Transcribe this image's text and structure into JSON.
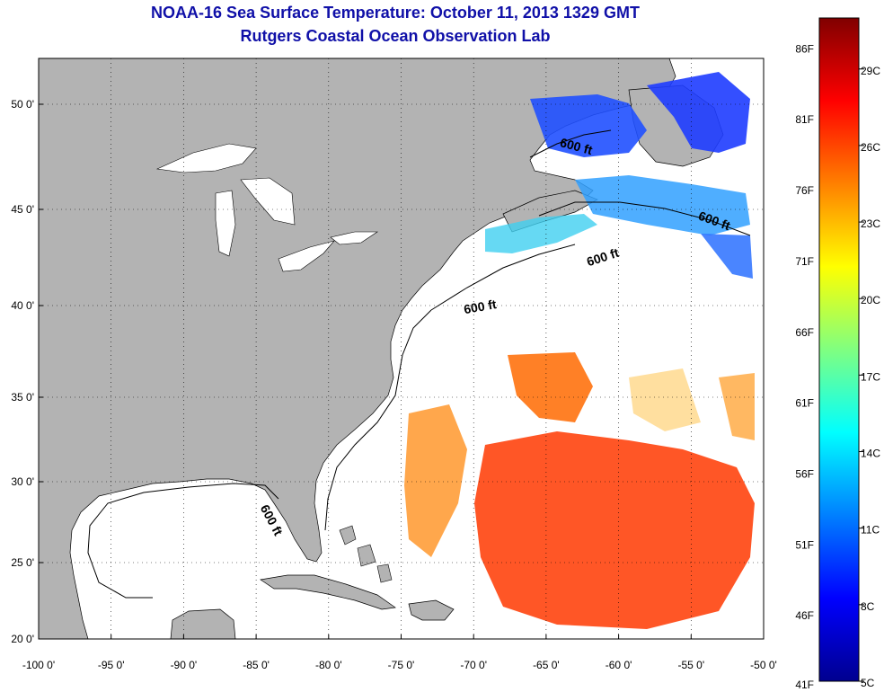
{
  "header": {
    "title": "NOAA-16 Sea Surface Temperature:  October 11, 2013 1329 GMT",
    "subtitle": "Rutgers Coastal Ocean Observation Lab"
  },
  "map": {
    "lon_range": [
      -100,
      -50
    ],
    "lat_range": [
      20,
      52
    ],
    "x_ticks": [
      {
        "value": -100,
        "label": "-100 0'"
      },
      {
        "value": -95,
        "label": "-95 0'"
      },
      {
        "value": -90,
        "label": "-90 0'"
      },
      {
        "value": -85,
        "label": "-85 0'"
      },
      {
        "value": -80,
        "label": "-80 0'"
      },
      {
        "value": -75,
        "label": "-75 0'"
      },
      {
        "value": -70,
        "label": "-70 0'"
      },
      {
        "value": -65,
        "label": "-65 0'"
      },
      {
        "value": -60,
        "label": "-60 0'"
      },
      {
        "value": -55,
        "label": "-55 0'"
      },
      {
        "value": -50,
        "label": "-50 0'"
      }
    ],
    "y_ticks": [
      {
        "value": 50,
        "label": "50 0'"
      },
      {
        "value": 45,
        "label": "45 0'"
      },
      {
        "value": 40,
        "label": "40 0'"
      },
      {
        "value": 35,
        "label": "35 0'"
      },
      {
        "value": 30,
        "label": "30 0'"
      },
      {
        "value": 25,
        "label": "25 0'"
      },
      {
        "value": 20,
        "label": "20 0'"
      }
    ],
    "contour_label": "600 ft",
    "contour_labels": [
      {
        "lon": -63.0,
        "lat": 47.8,
        "angle": 15
      },
      {
        "lon": -53.5,
        "lat": 44.2,
        "angle": 20
      },
      {
        "lon": -61.0,
        "lat": 42.3,
        "angle": -18
      },
      {
        "lon": -69.5,
        "lat": 39.7,
        "angle": -10
      },
      {
        "lon": -84.2,
        "lat": 27.5,
        "angle": 62
      }
    ],
    "land_color": "#b3b3b3",
    "ocean_color": "#ffffff"
  },
  "colorbar": {
    "f_labels": [
      {
        "value": 86,
        "label": "86F"
      },
      {
        "value": 81,
        "label": "81F"
      },
      {
        "value": 76,
        "label": "76F"
      },
      {
        "value": 71,
        "label": "71F"
      },
      {
        "value": 66,
        "label": "66F"
      },
      {
        "value": 61,
        "label": "61F"
      },
      {
        "value": 56,
        "label": "56F"
      },
      {
        "value": 51,
        "label": "51F"
      },
      {
        "value": 46,
        "label": "46F"
      },
      {
        "value": 41,
        "label": "41F"
      }
    ],
    "c_labels": [
      {
        "value": 29,
        "label": "29C"
      },
      {
        "value": 26,
        "label": "26C"
      },
      {
        "value": 23,
        "label": "23C"
      },
      {
        "value": 20,
        "label": "20C"
      },
      {
        "value": 17,
        "label": "17C"
      },
      {
        "value": 14,
        "label": "14C"
      },
      {
        "value": 11,
        "label": "11C"
      },
      {
        "value": 8,
        "label": "8C"
      },
      {
        "value": 5,
        "label": "5C"
      }
    ],
    "range_c": [
      5,
      31
    ],
    "colors": [
      "#00008f",
      "#0000ff",
      "#0080ff",
      "#00ffff",
      "#80ff80",
      "#ffff00",
      "#ff8000",
      "#ff0000",
      "#800000"
    ]
  }
}
